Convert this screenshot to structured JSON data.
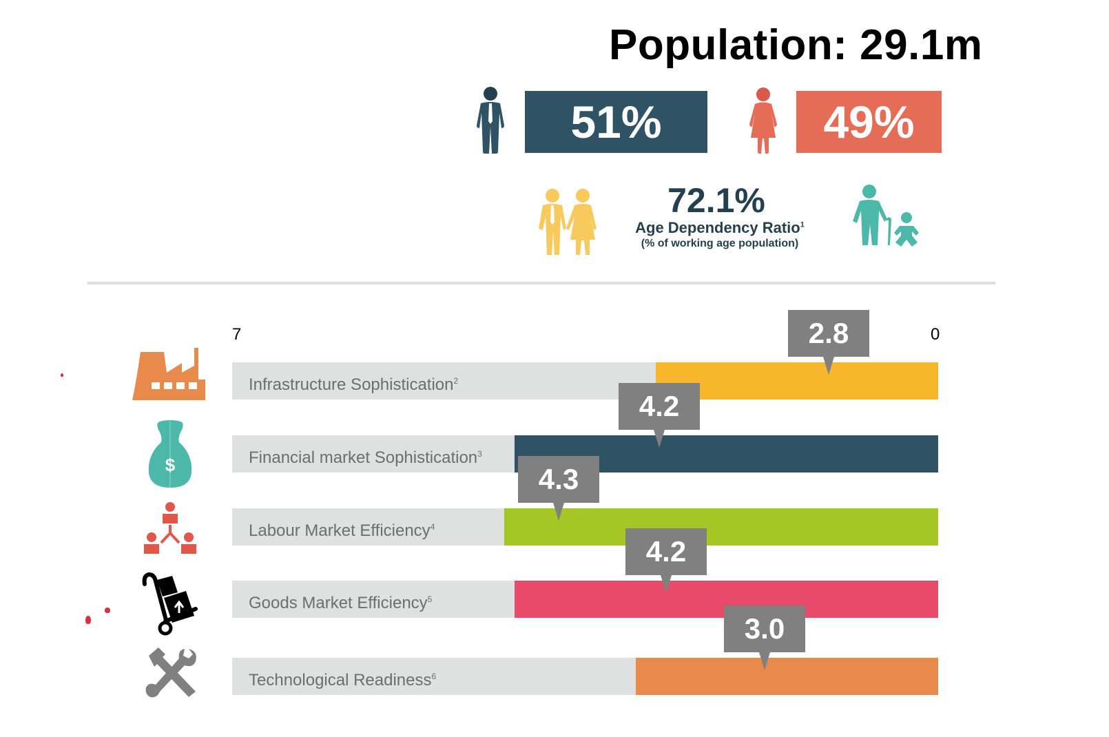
{
  "header": {
    "population_title": "Population: 29.1m"
  },
  "gender": {
    "male": {
      "icon": "man-icon",
      "percent": "51%",
      "color": "#2f5364"
    },
    "female": {
      "icon": "woman-icon",
      "percent": "49%",
      "color": "#e56c57"
    }
  },
  "dependency": {
    "value": "72.1%",
    "label": "Age Dependency Ratio",
    "footnote": "1",
    "sublabel": "(% of working age population)",
    "left_icon": "working-couple-icon",
    "right_icon": "elderly-and-baby-icon"
  },
  "chart_data": {
    "type": "bar",
    "orientation": "horizontal",
    "axis": {
      "min_label": "7",
      "max_label": "0",
      "range": [
        7,
        0
      ],
      "direction": "reversed"
    },
    "categories": [
      "Infrastructure Sophistication",
      "Financial market Sophistication",
      "Labour Market Efficiency",
      "Goods Market Efficiency",
      "Technological Readiness"
    ],
    "footnotes": [
      "2",
      "3",
      "4",
      "5",
      "6"
    ],
    "values": [
      2.8,
      4.2,
      4.3,
      4.2,
      3.0
    ],
    "value_labels": [
      "2.8",
      "4.2",
      "4.3",
      "4.2",
      "3.0"
    ],
    "colors": [
      "#f8b62d",
      "#2f5364",
      "#a5c625",
      "#ea4a6a",
      "#e88a4c"
    ],
    "icons": [
      "factory-icon",
      "money-bag-icon",
      "org-network-icon",
      "hand-truck-icon",
      "tools-icon"
    ],
    "grid": false,
    "legend": "none"
  }
}
